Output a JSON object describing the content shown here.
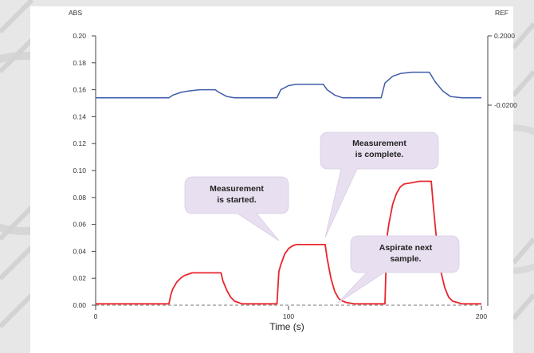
{
  "chart_data": {
    "type": "line",
    "xlabel": "Time (s)",
    "ylabel": "ABS",
    "y2label": "REF",
    "xlim": [
      0,
      200
    ],
    "ylim": [
      0,
      0.2
    ],
    "x_ticks": [
      "0",
      "100",
      "200"
    ],
    "y_ticks": [
      "0.00",
      "0.02",
      "0.04",
      "0.06",
      "0.08",
      "0.10",
      "0.12",
      "0.14",
      "0.16",
      "0.18",
      "0.20"
    ],
    "y2_ticks": [
      "0.2000",
      "-0.0200"
    ],
    "grid": false,
    "baseline": {
      "y": 0.0,
      "style": "dashed"
    },
    "series": [
      {
        "color": "#e8262c",
        "x": [
          0,
          38,
          39,
          40,
          42,
          44,
          46,
          48,
          50,
          54,
          62,
          65,
          66,
          68,
          70,
          72,
          74,
          76,
          80,
          94,
          95,
          96,
          98,
          100,
          102,
          104,
          108,
          112,
          119,
          120,
          122,
          124,
          126,
          128,
          130,
          134,
          150,
          151,
          152,
          154,
          156,
          158,
          160,
          164,
          168,
          172,
          174,
          175,
          177,
          179,
          181,
          183,
          185,
          190,
          200
        ],
        "y": [
          0.001,
          0.001,
          0.008,
          0.012,
          0.017,
          0.02,
          0.022,
          0.023,
          0.024,
          0.024,
          0.024,
          0.024,
          0.018,
          0.011,
          0.006,
          0.003,
          0.002,
          0.001,
          0.001,
          0.001,
          0.025,
          0.03,
          0.038,
          0.042,
          0.044,
          0.045,
          0.045,
          0.045,
          0.045,
          0.035,
          0.02,
          0.01,
          0.005,
          0.003,
          0.002,
          0.001,
          0.001,
          0.05,
          0.06,
          0.075,
          0.083,
          0.088,
          0.09,
          0.091,
          0.092,
          0.092,
          0.092,
          0.075,
          0.045,
          0.025,
          0.013,
          0.006,
          0.003,
          0.001,
          0.001
        ]
      },
      {
        "color": "#3d5ca8",
        "x": [
          0,
          38,
          40,
          44,
          48,
          54,
          62,
          64,
          68,
          72,
          80,
          94,
          96,
          100,
          104,
          110,
          118,
          120,
          124,
          128,
          140,
          148,
          150,
          154,
          158,
          164,
          173,
          176,
          180,
          184,
          190,
          200
        ],
        "y": [
          0.154,
          0.154,
          0.156,
          0.158,
          0.159,
          0.16,
          0.16,
          0.158,
          0.155,
          0.154,
          0.154,
          0.154,
          0.16,
          0.163,
          0.164,
          0.164,
          0.164,
          0.16,
          0.156,
          0.154,
          0.154,
          0.154,
          0.165,
          0.17,
          0.172,
          0.173,
          0.173,
          0.166,
          0.159,
          0.155,
          0.154,
          0.154
        ]
      }
    ],
    "annotations": [
      {
        "text": [
          "Measurement",
          "is started."
        ]
      },
      {
        "text": [
          "Measurement",
          "is complete."
        ]
      },
      {
        "text": [
          "Aspirate next",
          "sample."
        ]
      }
    ]
  }
}
